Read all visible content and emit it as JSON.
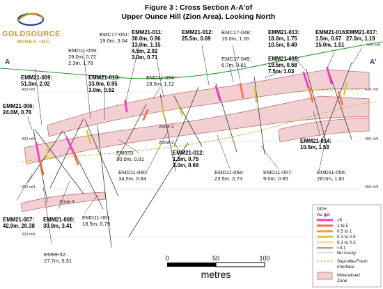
{
  "logo": {
    "line1": "GOLDSOURCE",
    "line2": "MINES INC."
  },
  "title": {
    "line1": "Figure 3 : Cross Section A-A'of",
    "line2": "Upper Ounce Hill (Zion Area). Looking North"
  },
  "section_ends": {
    "left": "A",
    "right": "A'"
  },
  "elevations": {
    "e450_l": "450 mN",
    "e400_l": "400 mN",
    "e350_l": "350 mN",
    "e300_l": "300 mN",
    "e450_r": "450 mN",
    "e400_r": "400 mN",
    "e350_r": "350 mN",
    "top_r": "500 mN"
  },
  "zones": {
    "z1": "Zone 1",
    "z2": "Zone 2",
    "z3": "Zone 3"
  },
  "holes": {
    "emc17_051": {
      "name": "EMC17-051:",
      "v1": "19.0m, 3.04"
    },
    "emm21_011": {
      "name": "EMM21-011:",
      "v1": "30.0m, 0.96",
      "v2": "13.0m, 1.15",
      "v3": "4.5m, 2.92",
      "v4": "3.0m, 0.71"
    },
    "emm21_012t": {
      "name": "EMM21-012:",
      "v1": "25.5m, 0.69"
    },
    "emc17_048": {
      "name": "EMC17-048:",
      "v1": "15.0m, 1.05"
    },
    "emm21_013": {
      "name": "EMM21-013:",
      "v1": "18.0m, 1.75",
      "v2": "10.5m, 0.49"
    },
    "emm21_016": {
      "name": "EMM21-016:",
      "v1": "1.5m, 0.67",
      "v2": "15.0m, 1.51"
    },
    "emm21_017": {
      "name": "EMM21-017:",
      "v1": "27.0m, 1.19"
    },
    "emd11_059": {
      "name": "EMD11-059:",
      "v1": "29.0m, 0.72",
      "v2": "2.3m, 1.78"
    },
    "emc17_049": {
      "name": "EMC17-049:",
      "v1": "6.7m, 0.81"
    },
    "emm21_015": {
      "name": "EMM21-015:",
      "v1": "19.5m, 0.58",
      "v2": "7.5m, 1.03"
    },
    "emm21_009": {
      "name": "EMM21-009:",
      "v1": "51.0m, 2.02"
    },
    "emm21_010": {
      "name": "EMM21-010:",
      "v1": "33.0m, 0.95",
      "v2": "3.0m, 0.52"
    },
    "emd11_054": {
      "name": "EMD11-054:",
      "v1": "18.0m, 1.12"
    },
    "emm21_006": {
      "name": "EMM21-006:",
      "v1": "24.0M, 0.76"
    },
    "emm21_014": {
      "name": "EMM21-014:",
      "v1": "10.5m, 1.53"
    },
    "em033": {
      "name": "EM033:",
      "v1": "30.0m, 0.81"
    },
    "emm21_012b": {
      "name": "EMM21-012:",
      "v1": "1.5m, 0.75",
      "v2": "3.0m, 0.69"
    },
    "emd11_060": {
      "name": "EMD11-060:",
      "v1": "34.5m, 0.84"
    },
    "emd11_058": {
      "name": "EMD11-058:",
      "v1": "23.5m, 0.73"
    },
    "emd11_057": {
      "name": "EMD11-057:",
      "v1": "9.0m, 0.65"
    },
    "emd11_056": {
      "name": "EMD11-056:",
      "v1": "28.0m, 1.81"
    },
    "emm21_007": {
      "name": "EMM21-007:",
      "v1": "42.0m, 20.38"
    },
    "emm21_008": {
      "name": "EMM21-008:",
      "v1": "30.0m, 3.41"
    },
    "emd11_061": {
      "name": "EMD11-061:",
      "v1": "18.5m, 0.79"
    },
    "em99_52": {
      "name": "EM99-52:",
      "v1": "27.7m, 5.31"
    }
  },
  "scale": {
    "t0": "0",
    "t50": "50",
    "t100": "100",
    "unit": "metres"
  },
  "legend": {
    "title1": "DDH",
    "title2": "Au gpt",
    "items": [
      ">5",
      "1     to    5",
      "0.5  to    1",
      "0.3  to  0.5",
      "0.1  to  0.3",
      "<0.1",
      "No Assay"
    ],
    "saprolite1": "Saprolite-Fresh",
    "saprolite2": "Interface",
    "mineral1": "Mineralised",
    "mineral2": "Zone"
  },
  "colors": {
    "gt5": "#ff33cc",
    "c1to5": "#ff6a3d",
    "c05to1": "#ff9a3d",
    "c03to05": "#d9c830",
    "c01to03": "#ffd9a0",
    "lt01": "#333333",
    "noassay": "#666666",
    "topo": "#2f8c2f",
    "saprolite": "#b5c93a",
    "zone_fill": "#f2d0d2",
    "zone_edge": "#b87074",
    "brand": "#c99a1e",
    "ends": "#1a3f8f"
  }
}
